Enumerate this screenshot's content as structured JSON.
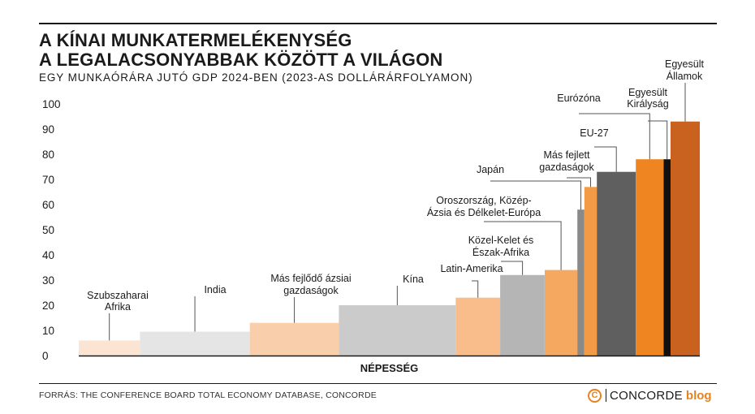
{
  "title_line1": "A KÍNAI MUNKATERMELÉKENYSÉG",
  "title_line2": "A LEGALACSONYABBAK KÖZÖTT A VILÁGON",
  "subtitle": "EGY MUNKAÓRÁRA JUTÓ GDP 2024-BEN (2023-AS DOLLÁRÁRFOLYAMON)",
  "source": "FORRÁS: THE CONFERENCE BOARD TOTAL ECONOMY DATABASE, CONCORDE",
  "logo": {
    "mark": "C",
    "word": "CONCORDE",
    "blog": "blog",
    "mark_color": "#e8821e"
  },
  "chart_data": {
    "type": "bar",
    "variant": "variable-width",
    "xlabel": "NÉPESSÉG",
    "ylabel": "",
    "ylim": [
      0,
      100
    ],
    "yticks": [
      0,
      10,
      20,
      30,
      40,
      50,
      60,
      70,
      80,
      90,
      100
    ],
    "grid": false,
    "bars": [
      {
        "label": [
          "Szubszaharai",
          "Afrika"
        ],
        "value": 6,
        "population_share": 8.8,
        "color": "#fbe5d2"
      },
      {
        "label": [
          "India"
        ],
        "value": 9.5,
        "population_share": 15.8,
        "color": "#e5e5e5"
      },
      {
        "label": [
          "Más fejlődő ázsiai",
          "gazdaságok"
        ],
        "value": 13,
        "population_share": 12.8,
        "color": "#f9ceab"
      },
      {
        "label": [
          "Kína"
        ],
        "value": 20,
        "population_share": 16.8,
        "color": "#cbcbcb"
      },
      {
        "label": [
          "Latin-Amerika"
        ],
        "value": 23,
        "population_share": 6.4,
        "color": "#f8bd8a"
      },
      {
        "label": [
          "Közel-Kelet és",
          "Észak-Afrika"
        ],
        "value": 32,
        "population_share": 6.4,
        "color": "#b5b5b5"
      },
      {
        "label": [
          "Oroszország, Közép-",
          "Ázsia és Délkelet-Európa"
        ],
        "value": 34,
        "population_share": 4.7,
        "color": "#f5a960"
      },
      {
        "label": [
          "Japán"
        ],
        "value": 58,
        "population_share": 1.0,
        "color": "#898989"
      },
      {
        "label": [
          "Más fejlett",
          "gazdaságok"
        ],
        "value": 67,
        "population_share": 1.8,
        "color": "#f39a47"
      },
      {
        "label": [
          "EU-27"
        ],
        "value": 73,
        "population_share": 5.6,
        "color": "#5f5f5f"
      },
      {
        "label": [
          "Eurózóna"
        ],
        "value": 78,
        "population_share": 4.0,
        "color": "#ee8520"
      },
      {
        "label": [
          "Egyesült",
          "Királyság"
        ],
        "value": 78,
        "population_share": 1.0,
        "color": "#111111"
      },
      {
        "label": [
          "Egyesült",
          "Államok"
        ],
        "value": 93,
        "population_share": 4.2,
        "color": "#c8621e"
      }
    ]
  }
}
